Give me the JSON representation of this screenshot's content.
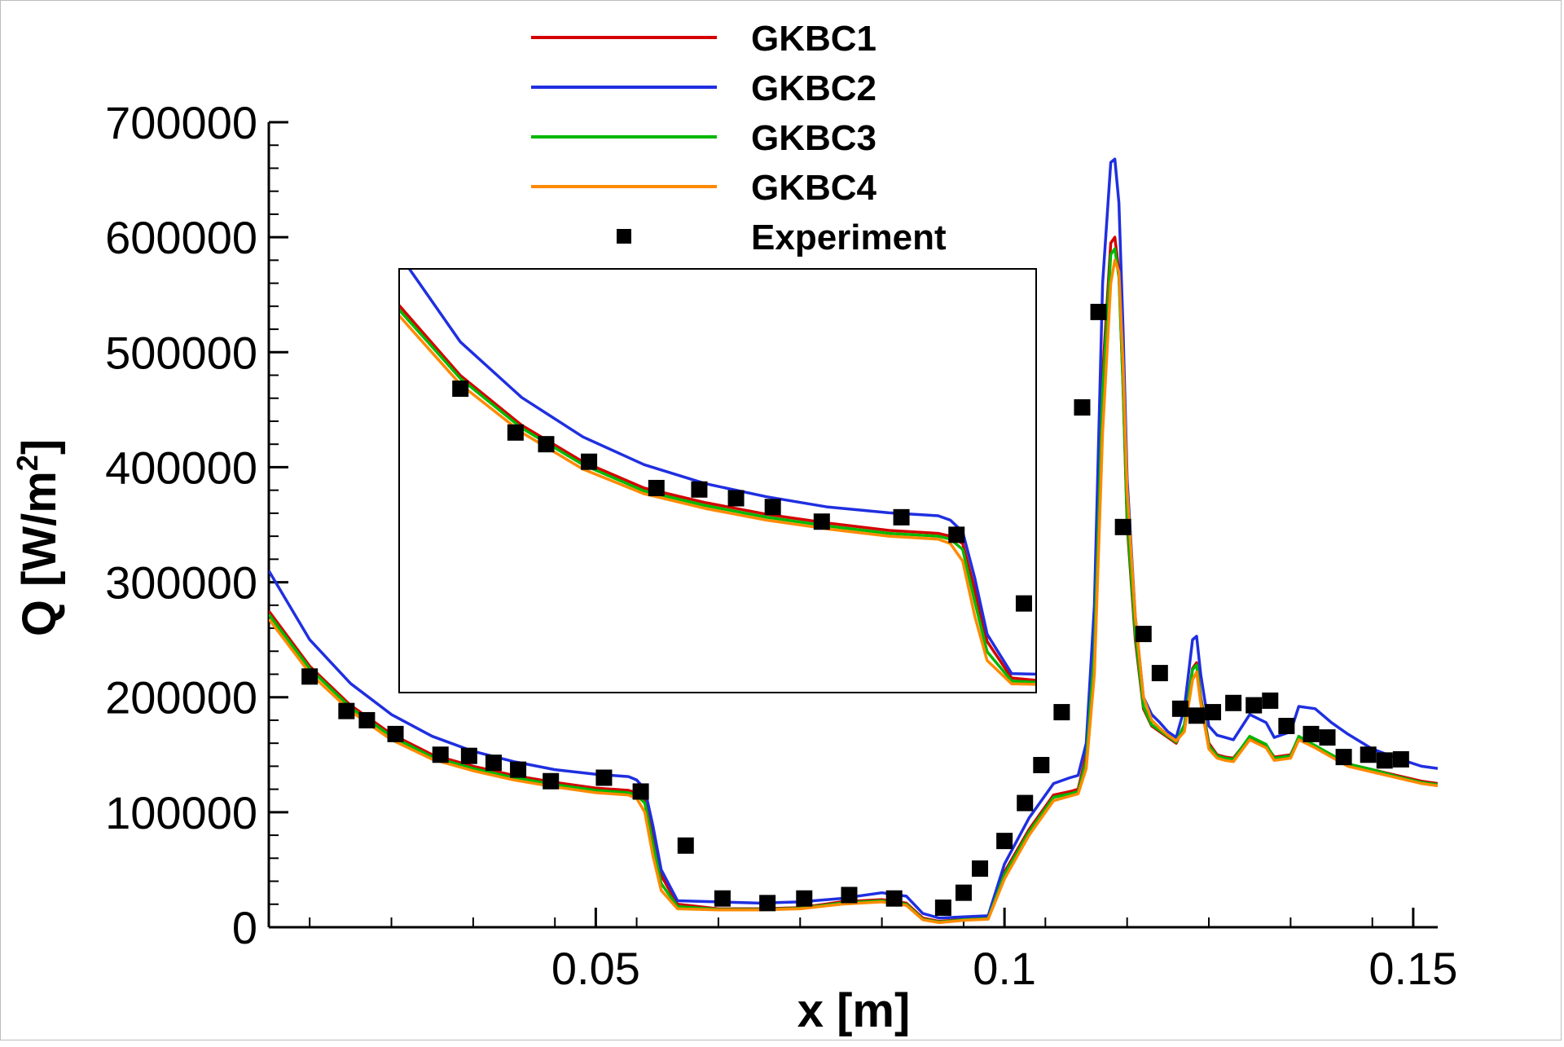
{
  "chart_data": {
    "type": "line",
    "title": "",
    "xlabel": "x [m]",
    "ylabel": "Q [W/m",
    "ylabel_sup": "2",
    "ylabel_close": "]",
    "xlim": [
      0.01,
      0.153
    ],
    "ylim": [
      0,
      700000
    ],
    "x_ticks": [
      0.05,
      0.1,
      0.15
    ],
    "x_tick_labels": [
      "0.05",
      "0.1",
      "0.15"
    ],
    "y_ticks": [
      0,
      100000,
      200000,
      300000,
      400000,
      500000,
      600000,
      700000
    ],
    "y_tick_labels": [
      "0",
      "100000",
      "200000",
      "300000",
      "400000",
      "500000",
      "600000",
      "700000"
    ],
    "legend": {
      "position": "top-center",
      "entries": [
        "GKBC1",
        "GKBC2",
        "GKBC3",
        "GKBC4",
        "Experiment"
      ]
    },
    "colors": {
      "GKBC1": "#d40000",
      "GKBC2": "#1f2fe0",
      "GKBC3": "#00b800",
      "GKBC4": "#ff8a00",
      "Experiment": "#000000"
    },
    "series": [
      {
        "name": "GKBC1",
        "x": [
          0.01,
          0.015,
          0.02,
          0.025,
          0.03,
          0.035,
          0.04,
          0.045,
          0.05,
          0.054,
          0.055,
          0.056,
          0.057,
          0.058,
          0.06,
          0.065,
          0.07,
          0.075,
          0.08,
          0.085,
          0.088,
          0.09,
          0.092,
          0.095,
          0.098,
          0.1,
          0.103,
          0.106,
          0.108,
          0.109,
          0.11,
          0.111,
          0.112,
          0.113,
          0.1135,
          0.114,
          0.1145,
          0.115,
          0.116,
          0.117,
          0.118,
          0.119,
          0.12,
          0.121,
          0.122,
          0.123,
          0.1235,
          0.124,
          0.125,
          0.126,
          0.127,
          0.128,
          0.13,
          0.132,
          0.133,
          0.135,
          0.136,
          0.138,
          0.14,
          0.142,
          0.145,
          0.148,
          0.151,
          0.153
        ],
        "y": [
          275000,
          227000,
          193000,
          168000,
          150000,
          140000,
          132000,
          126000,
          121000,
          119000,
          117000,
          112000,
          80000,
          45000,
          20000,
          16000,
          16000,
          17000,
          22000,
          24000,
          21000,
          8000,
          5000,
          7000,
          8000,
          48000,
          85000,
          115000,
          118000,
          120000,
          150000,
          250000,
          480000,
          595000,
          600000,
          570000,
          470000,
          350000,
          250000,
          190000,
          175000,
          170000,
          165000,
          160000,
          175000,
          225000,
          230000,
          200000,
          160000,
          150000,
          148000,
          147000,
          165000,
          158000,
          148000,
          150000,
          165000,
          157000,
          150000,
          142000,
          137000,
          132000,
          127000,
          125000
        ]
      },
      {
        "name": "GKBC2",
        "x": [
          0.01,
          0.015,
          0.02,
          0.025,
          0.03,
          0.035,
          0.04,
          0.045,
          0.05,
          0.054,
          0.055,
          0.056,
          0.057,
          0.058,
          0.06,
          0.065,
          0.07,
          0.075,
          0.08,
          0.085,
          0.088,
          0.09,
          0.092,
          0.095,
          0.098,
          0.1,
          0.103,
          0.106,
          0.108,
          0.109,
          0.11,
          0.111,
          0.112,
          0.113,
          0.1135,
          0.114,
          0.1145,
          0.115,
          0.116,
          0.117,
          0.118,
          0.119,
          0.12,
          0.121,
          0.122,
          0.123,
          0.1235,
          0.124,
          0.125,
          0.126,
          0.127,
          0.128,
          0.13,
          0.132,
          0.133,
          0.135,
          0.136,
          0.138,
          0.14,
          0.142,
          0.145,
          0.148,
          0.151,
          0.153
        ],
        "y": [
          310000,
          250000,
          212000,
          185000,
          166000,
          153000,
          144000,
          137000,
          133000,
          131000,
          128000,
          120000,
          88000,
          50000,
          23000,
          22000,
          21000,
          22000,
          25000,
          30000,
          27000,
          12000,
          8000,
          9000,
          10000,
          55000,
          95000,
          125000,
          130000,
          132000,
          160000,
          280000,
          560000,
          665000,
          668000,
          630000,
          520000,
          390000,
          270000,
          200000,
          185000,
          178000,
          170000,
          165000,
          190000,
          250000,
          253000,
          220000,
          175000,
          167000,
          165000,
          163000,
          185000,
          178000,
          165000,
          170000,
          192000,
          190000,
          178000,
          168000,
          155000,
          147000,
          140000,
          138000
        ]
      },
      {
        "name": "GKBC3",
        "x": [
          0.01,
          0.015,
          0.02,
          0.025,
          0.03,
          0.035,
          0.04,
          0.045,
          0.05,
          0.054,
          0.055,
          0.056,
          0.057,
          0.058,
          0.06,
          0.065,
          0.07,
          0.075,
          0.08,
          0.085,
          0.088,
          0.09,
          0.092,
          0.095,
          0.098,
          0.1,
          0.103,
          0.106,
          0.108,
          0.109,
          0.11,
          0.111,
          0.112,
          0.113,
          0.1135,
          0.114,
          0.1145,
          0.115,
          0.116,
          0.117,
          0.118,
          0.119,
          0.12,
          0.121,
          0.122,
          0.123,
          0.1235,
          0.124,
          0.125,
          0.126,
          0.127,
          0.128,
          0.13,
          0.132,
          0.133,
          0.135,
          0.136,
          0.138,
          0.14,
          0.142,
          0.145,
          0.148,
          0.151,
          0.153
        ],
        "y": [
          272000,
          225000,
          191000,
          166000,
          148000,
          138000,
          130000,
          124000,
          119000,
          117000,
          115000,
          108000,
          72000,
          38000,
          18000,
          15500,
          15500,
          16500,
          21000,
          23000,
          20000,
          7000,
          4500,
          6500,
          7500,
          46000,
          83000,
          113000,
          116000,
          118000,
          145000,
          240000,
          465000,
          585000,
          590000,
          565000,
          470000,
          355000,
          255000,
          192000,
          176000,
          171000,
          166000,
          161000,
          176000,
          224000,
          228000,
          198000,
          158000,
          149000,
          147000,
          146000,
          166000,
          159000,
          147000,
          149000,
          166000,
          158000,
          150000,
          142000,
          137000,
          131000,
          126000,
          124000
        ]
      },
      {
        "name": "GKBC4",
        "x": [
          0.01,
          0.015,
          0.02,
          0.025,
          0.03,
          0.035,
          0.04,
          0.045,
          0.05,
          0.054,
          0.055,
          0.056,
          0.057,
          0.058,
          0.06,
          0.065,
          0.07,
          0.075,
          0.08,
          0.085,
          0.088,
          0.09,
          0.092,
          0.095,
          0.098,
          0.1,
          0.103,
          0.106,
          0.108,
          0.109,
          0.11,
          0.111,
          0.112,
          0.113,
          0.1135,
          0.114,
          0.1145,
          0.115,
          0.116,
          0.117,
          0.118,
          0.119,
          0.12,
          0.121,
          0.122,
          0.123,
          0.1235,
          0.124,
          0.125,
          0.126,
          0.127,
          0.128,
          0.13,
          0.132,
          0.133,
          0.135,
          0.136,
          0.138,
          0.14,
          0.142,
          0.145,
          0.148,
          0.151,
          0.153
        ],
        "y": [
          268000,
          221000,
          188000,
          163000,
          146000,
          136000,
          128000,
          122000,
          117000,
          115000,
          112000,
          100000,
          62000,
          32000,
          16000,
          15000,
          15000,
          16000,
          20000,
          22000,
          19000,
          6500,
          4000,
          6000,
          7000,
          42000,
          80000,
          110000,
          114000,
          116000,
          138000,
          220000,
          430000,
          560000,
          580000,
          570000,
          490000,
          380000,
          270000,
          200000,
          180000,
          173000,
          167000,
          162000,
          170000,
          215000,
          222000,
          195000,
          155000,
          147000,
          145000,
          144000,
          163000,
          156000,
          145000,
          147000,
          163000,
          156000,
          148000,
          140000,
          135000,
          130000,
          125000,
          123000
        ]
      },
      {
        "name": "Experiment",
        "type": "scatter",
        "marker": "square",
        "x": [
          0.015,
          0.0195,
          0.022,
          0.0255,
          0.031,
          0.0345,
          0.0375,
          0.0405,
          0.0445,
          0.051,
          0.0555,
          0.061,
          0.0655,
          0.071,
          0.0755,
          0.081,
          0.0865,
          0.0925,
          0.095,
          0.097,
          0.1,
          0.1025,
          0.1045,
          0.107,
          0.1095,
          0.1115,
          0.1145,
          0.117,
          0.119,
          0.1215,
          0.1235,
          0.1255,
          0.128,
          0.1305,
          0.1325,
          0.1345,
          0.1375,
          0.1395,
          0.1415,
          0.1445,
          0.1465,
          0.1485
        ],
        "y": [
          218000,
          188000,
          180000,
          168000,
          150000,
          149000,
          143000,
          137000,
          127000,
          130000,
          118000,
          71000,
          25000,
          21000,
          25000,
          28000,
          25000,
          17000,
          30000,
          51000,
          75000,
          108000,
          141000,
          187000,
          452000,
          535000,
          348000,
          255000,
          221000,
          190000,
          184000,
          187000,
          195000,
          193000,
          197000,
          175000,
          168000,
          165000,
          148000,
          150000,
          145000,
          146000
        ]
      }
    ],
    "inset": {
      "bounds_type": "detail-view",
      "series_note": "magnified view of region 0.01–0.06 m",
      "xlim": [
        0.01,
        0.062
      ],
      "ylim": [
        10000,
        300000
      ]
    }
  }
}
